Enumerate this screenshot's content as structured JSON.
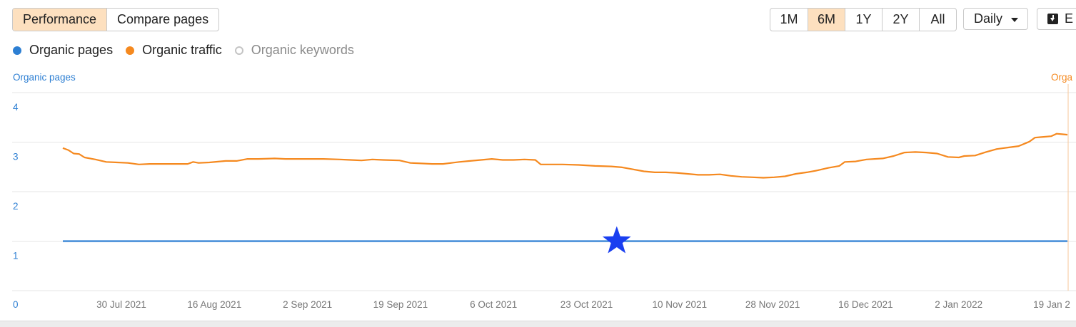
{
  "toolbar": {
    "view_tabs": [
      {
        "label": "Performance",
        "active": true
      },
      {
        "label": "Compare pages",
        "active": false
      }
    ],
    "range_tabs": [
      {
        "label": "1M",
        "active": false
      },
      {
        "label": "6M",
        "active": true
      },
      {
        "label": "1Y",
        "active": false
      },
      {
        "label": "2Y",
        "active": false
      },
      {
        "label": "All",
        "active": false
      }
    ],
    "interval_select": "Daily",
    "export_label": "E",
    "export_icon": "download-icon"
  },
  "legend": [
    {
      "label": "Organic pages",
      "color": "#2d7fd3",
      "enabled": true
    },
    {
      "label": "Organic traffic",
      "color": "#f5891f",
      "enabled": true
    },
    {
      "label": "Organic keywords",
      "color": "#c4c4c4",
      "enabled": false
    }
  ],
  "colors": {
    "pages": "#2d7fd3",
    "traffic": "#f5891f",
    "grid": "#e6e6e6",
    "active_tab": "#fde0bf",
    "marker": "#1a3ff0"
  },
  "chart_data": {
    "type": "line",
    "left_axis_title": "Organic pages",
    "right_axis_title": "Orga",
    "left_ticks": [
      "0",
      "1",
      "2",
      "3",
      "4"
    ],
    "ylim_left": [
      0,
      4
    ],
    "x_tick_labels": [
      "30 Jul 2021",
      "16 Aug 2021",
      "2 Sep 2021",
      "19 Sep 2021",
      "6 Oct 2021",
      "23 Oct 2021",
      "10 Nov 2021",
      "28 Nov 2021",
      "16 Dec 2021",
      "2 Jan 2022",
      "19 Jan 2"
    ],
    "xlim": [
      "2021-07-20",
      "2022-01-21"
    ],
    "grid": true,
    "marker": {
      "shape": "star",
      "date": "2021-10-30",
      "value": 1
    },
    "series": [
      {
        "name": "Organic pages",
        "axis": "left",
        "points": [
          [
            "2021-07-20",
            1
          ],
          [
            "2022-01-21",
            1
          ]
        ]
      },
      {
        "name": "Organic traffic",
        "axis": "right",
        "scale_note": "right-axis values not visible; plotted on left scale",
        "points": [
          [
            "2021-07-20",
            2.88
          ],
          [
            "2021-07-21",
            2.84
          ],
          [
            "2021-07-22",
            2.77
          ],
          [
            "2021-07-23",
            2.76
          ],
          [
            "2021-07-24",
            2.69
          ],
          [
            "2021-07-26",
            2.65
          ],
          [
            "2021-07-28",
            2.6
          ],
          [
            "2021-07-30",
            2.59
          ],
          [
            "2021-08-01",
            2.58
          ],
          [
            "2021-08-03",
            2.55
          ],
          [
            "2021-08-05",
            2.56
          ],
          [
            "2021-08-07",
            2.56
          ],
          [
            "2021-08-10",
            2.56
          ],
          [
            "2021-08-12",
            2.56
          ],
          [
            "2021-08-13",
            2.6
          ],
          [
            "2021-08-14",
            2.58
          ],
          [
            "2021-08-16",
            2.59
          ],
          [
            "2021-08-19",
            2.62
          ],
          [
            "2021-08-21",
            2.62
          ],
          [
            "2021-08-23",
            2.66
          ],
          [
            "2021-08-25",
            2.66
          ],
          [
            "2021-08-28",
            2.67
          ],
          [
            "2021-08-30",
            2.66
          ],
          [
            "2021-09-02",
            2.66
          ],
          [
            "2021-09-04",
            2.66
          ],
          [
            "2021-09-06",
            2.66
          ],
          [
            "2021-09-09",
            2.65
          ],
          [
            "2021-09-11",
            2.64
          ],
          [
            "2021-09-13",
            2.63
          ],
          [
            "2021-09-15",
            2.65
          ],
          [
            "2021-09-17",
            2.64
          ],
          [
            "2021-09-20",
            2.63
          ],
          [
            "2021-09-22",
            2.58
          ],
          [
            "2021-09-24",
            2.57
          ],
          [
            "2021-09-26",
            2.56
          ],
          [
            "2021-09-28",
            2.56
          ],
          [
            "2021-10-01",
            2.6
          ],
          [
            "2021-10-03",
            2.62
          ],
          [
            "2021-10-05",
            2.64
          ],
          [
            "2021-10-07",
            2.66
          ],
          [
            "2021-10-09",
            2.64
          ],
          [
            "2021-10-11",
            2.64
          ],
          [
            "2021-10-13",
            2.65
          ],
          [
            "2021-10-15",
            2.64
          ],
          [
            "2021-10-16",
            2.55
          ],
          [
            "2021-10-17",
            2.55
          ],
          [
            "2021-10-20",
            2.55
          ],
          [
            "2021-10-23",
            2.54
          ],
          [
            "2021-10-26",
            2.52
          ],
          [
            "2021-10-29",
            2.51
          ],
          [
            "2021-10-31",
            2.49
          ],
          [
            "2021-11-02",
            2.45
          ],
          [
            "2021-11-04",
            2.41
          ],
          [
            "2021-11-06",
            2.39
          ],
          [
            "2021-11-08",
            2.39
          ],
          [
            "2021-11-10",
            2.38
          ],
          [
            "2021-11-12",
            2.36
          ],
          [
            "2021-11-14",
            2.34
          ],
          [
            "2021-11-16",
            2.34
          ],
          [
            "2021-11-18",
            2.35
          ],
          [
            "2021-11-20",
            2.32
          ],
          [
            "2021-11-22",
            2.3
          ],
          [
            "2021-11-24",
            2.29
          ],
          [
            "2021-11-26",
            2.28
          ],
          [
            "2021-11-28",
            2.29
          ],
          [
            "2021-11-30",
            2.31
          ],
          [
            "2021-12-02",
            2.36
          ],
          [
            "2021-12-04",
            2.39
          ],
          [
            "2021-12-06",
            2.43
          ],
          [
            "2021-12-08",
            2.48
          ],
          [
            "2021-12-10",
            2.52
          ],
          [
            "2021-12-11",
            2.6
          ],
          [
            "2021-12-13",
            2.61
          ],
          [
            "2021-12-15",
            2.65
          ],
          [
            "2021-12-18",
            2.67
          ],
          [
            "2021-12-20",
            2.72
          ],
          [
            "2021-12-22",
            2.79
          ],
          [
            "2021-12-24",
            2.8
          ],
          [
            "2021-12-26",
            2.79
          ],
          [
            "2021-12-28",
            2.77
          ],
          [
            "2021-12-30",
            2.7
          ],
          [
            "2022-01-01",
            2.69
          ],
          [
            "2022-01-02",
            2.72
          ],
          [
            "2022-01-04",
            2.73
          ],
          [
            "2022-01-06",
            2.8
          ],
          [
            "2022-01-08",
            2.86
          ],
          [
            "2022-01-10",
            2.89
          ],
          [
            "2022-01-12",
            2.92
          ],
          [
            "2022-01-14",
            3.01
          ],
          [
            "2022-01-15",
            3.09
          ],
          [
            "2022-01-16",
            3.1
          ],
          [
            "2022-01-17",
            3.11
          ],
          [
            "2022-01-18",
            3.12
          ],
          [
            "2022-01-19",
            3.17
          ],
          [
            "2022-01-20",
            3.16
          ],
          [
            "2022-01-21",
            3.15
          ]
        ]
      }
    ]
  }
}
